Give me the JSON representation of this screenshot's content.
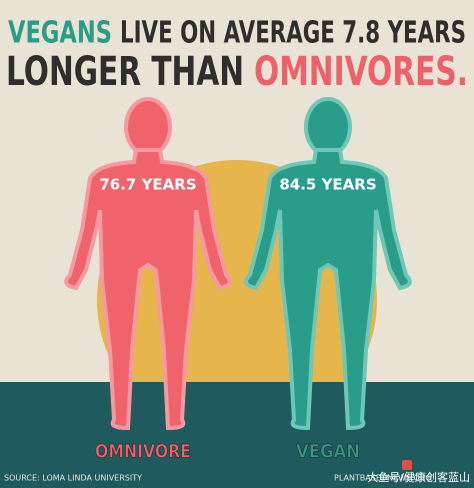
{
  "header": {
    "line1": [
      "VEGANS",
      "LIVE ON AVERAGE 7.8 YEARS"
    ],
    "line2": [
      "LONGER THAN",
      "OMNIVORES."
    ]
  },
  "figures": [
    {
      "years": "76.7 YEARS",
      "label": "OMNIVORE"
    },
    {
      "years": "84.5 YEARS",
      "label": "VEGAN"
    }
  ],
  "footer": {
    "source": "SOURCE: LOMA LINDA UNIVERSITY",
    "site": "PLANTBASEDNEWS.ORG",
    "watermark": "大鱼号/健康创客蓝山"
  }
}
